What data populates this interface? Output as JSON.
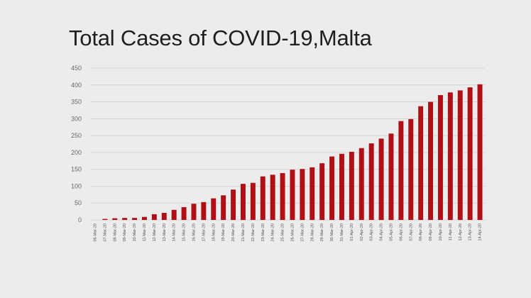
{
  "chart_data": {
    "type": "bar",
    "title": "Total Cases of COVID-19,Malta",
    "xlabel": "",
    "ylabel": "",
    "ylim": [
      0,
      450
    ],
    "yticks": [
      0,
      50,
      100,
      150,
      200,
      250,
      300,
      350,
      400,
      450
    ],
    "grid": true,
    "legend": "none",
    "bar_color": "#b10f16",
    "categories": [
      "06-Mar-20",
      "07-Mar-20",
      "08-Mar-20",
      "09-Mar-20",
      "10-Mar-20",
      "11-Mar-20",
      "12-Mar-20",
      "13-Mar-20",
      "14-Mar-20",
      "15-Mar-20",
      "16-Mar-20",
      "17-Mar-20",
      "18-Mar-20",
      "19-Mar-20",
      "20-Mar-20",
      "21-Mar-20",
      "22-Mar-20",
      "23-Mar-20",
      "24-Mar-20",
      "25-Mar-20",
      "26-Mar-20",
      "27-Mar-20",
      "28-Mar-20",
      "29-Mar-20",
      "30-Mar-20",
      "31-Mar-20",
      "01-Apr-20",
      "02-Apr-20",
      "03-Apr-20",
      "04-Apr-20",
      "05-Apr-20",
      "06-Apr-20",
      "07-Apr-20",
      "08-Apr-20",
      "09-Apr-20",
      "10-Apr-20",
      "11-Apr-20",
      "12-Apr-20",
      "13-Apr-20",
      "14-Apr-20"
    ],
    "values": [
      0,
      3,
      5,
      6,
      6,
      9,
      17,
      21,
      30,
      38,
      48,
      53,
      64,
      73,
      90,
      107,
      110,
      129,
      134,
      139,
      149,
      151,
      156,
      168,
      188,
      196,
      202,
      213,
      227,
      241,
      256,
      293,
      299,
      337,
      350,
      370,
      378,
      384,
      393,
      402
    ]
  }
}
